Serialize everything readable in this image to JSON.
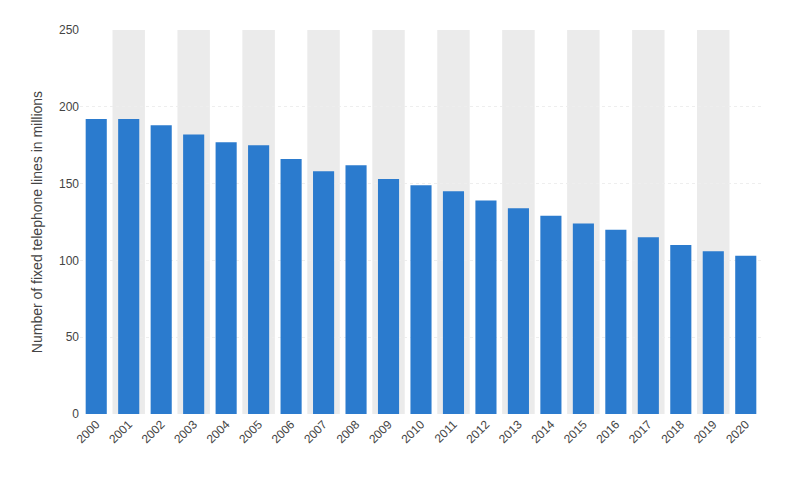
{
  "chart_data": {
    "type": "bar",
    "categories": [
      "2000",
      "2001",
      "2002",
      "2003",
      "2004",
      "2005",
      "2006",
      "2007",
      "2008",
      "2009",
      "2010",
      "2011",
      "2012",
      "2013",
      "2014",
      "2015",
      "2016",
      "2017",
      "2018",
      "2019",
      "2020"
    ],
    "values": [
      192,
      192,
      188,
      182,
      177,
      175,
      166,
      158,
      162,
      153,
      149,
      145,
      139,
      134,
      129,
      124,
      120,
      115,
      110,
      106,
      103
    ],
    "color": "#2b7bce",
    "ylabel": "Number of fixed telephone lines in millions",
    "ylim": [
      0,
      250
    ],
    "yticks": [
      0,
      50,
      100,
      150,
      200,
      250
    ],
    "grid": true
  }
}
